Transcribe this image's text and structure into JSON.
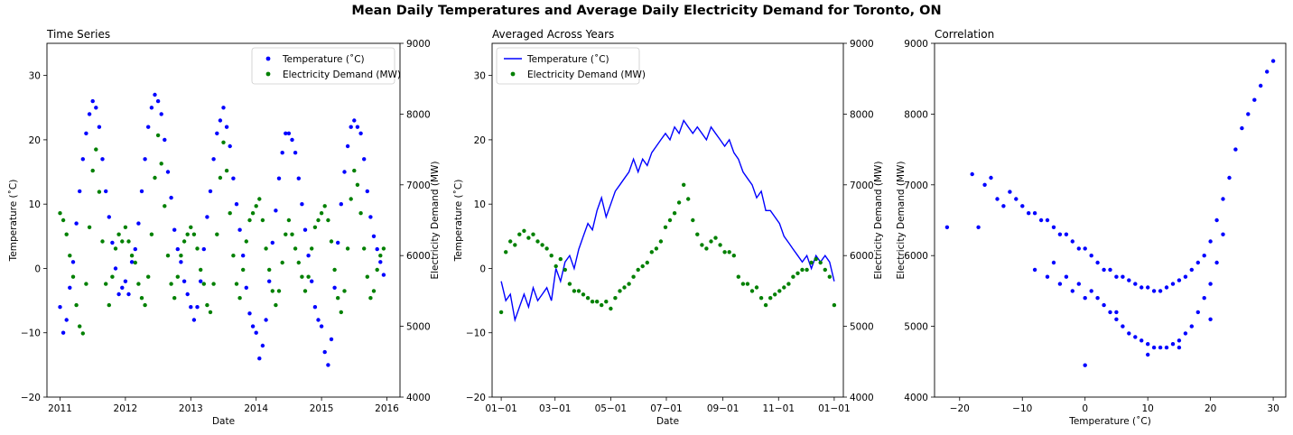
{
  "figure": {
    "suptitle": "Mean Daily Temperatures and Average Daily Electricity Demand for Toronto, ON"
  },
  "colors": {
    "temperature": "#0000ff",
    "demand": "#008000"
  },
  "chart_data": [
    {
      "id": "time-series",
      "type": "scatter",
      "title": "Time Series",
      "xlabel": "Date",
      "ylabel": "Temperature ($^\\circ$C)",
      "ylabel_display": "Temperature (˚C)",
      "ylabel_right": "Electricity Demand (MW)",
      "xlim": [
        2010.8,
        2016.2
      ],
      "ylim": [
        -20,
        35
      ],
      "ylim_right": [
        4000,
        9000
      ],
      "xticks": [
        2011,
        2012,
        2013,
        2014,
        2015,
        2016
      ],
      "xtick_labels": [
        "2011",
        "2012",
        "2013",
        "2014",
        "2015",
        "2016"
      ],
      "yticks": [
        -20,
        -10,
        0,
        10,
        20,
        30
      ],
      "yticks_right": [
        4000,
        5000,
        6000,
        7000,
        8000,
        9000
      ],
      "legend": {
        "placement": "upper-right",
        "entries": [
          "Temperature ($^\\circ$C)",
          "Electricity Demand (MW)"
        ],
        "entries_display": [
          "Temperature (˚C)",
          "Electricity Demand (MW)"
        ]
      },
      "series": [
        {
          "name": "Temperature (˚C)",
          "axis": "left",
          "marker": "point",
          "color": "#0000ff",
          "x": [
            2011.0,
            2011.05,
            2011.1,
            2011.15,
            2011.2,
            2011.25,
            2011.3,
            2011.35,
            2011.4,
            2011.45,
            2011.5,
            2011.55,
            2011.6,
            2011.65,
            2011.7,
            2011.75,
            2011.8,
            2011.85,
            2011.9,
            2011.95,
            2012.0,
            2012.05,
            2012.1,
            2012.15,
            2012.2,
            2012.25,
            2012.3,
            2012.35,
            2012.4,
            2012.45,
            2012.5,
            2012.55,
            2012.6,
            2012.65,
            2012.7,
            2012.75,
            2012.8,
            2012.85,
            2012.9,
            2012.95,
            2013.0,
            2013.05,
            2013.1,
            2013.15,
            2013.2,
            2013.25,
            2013.3,
            2013.35,
            2013.4,
            2013.45,
            2013.5,
            2013.55,
            2013.6,
            2013.65,
            2013.7,
            2013.75,
            2013.8,
            2013.85,
            2013.9,
            2013.95,
            2014.0,
            2014.05,
            2014.1,
            2014.15,
            2014.2,
            2014.25,
            2014.3,
            2014.35,
            2014.4,
            2014.45,
            2014.5,
            2014.55,
            2014.6,
            2014.65,
            2014.7,
            2014.75,
            2014.8,
            2014.85,
            2014.9,
            2014.95,
            2015.0,
            2015.05,
            2015.1,
            2015.15,
            2015.2,
            2015.25,
            2015.3,
            2015.35,
            2015.4,
            2015.45,
            2015.5,
            2015.55,
            2015.6,
            2015.65,
            2015.7,
            2015.75,
            2015.8,
            2015.85,
            2015.9,
            2015.95
          ],
          "y": [
            -6,
            -10,
            -8,
            -3,
            1,
            7,
            12,
            17,
            21,
            24,
            26,
            25,
            22,
            17,
            12,
            8,
            4,
            0,
            -4,
            -3,
            -2,
            -4,
            1,
            3,
            7,
            12,
            17,
            22,
            25,
            27,
            26,
            24,
            20,
            15,
            11,
            6,
            3,
            1,
            -2,
            -4,
            -6,
            -8,
            -6,
            -2,
            3,
            8,
            12,
            17,
            21,
            23,
            25,
            22,
            19,
            14,
            10,
            6,
            2,
            -3,
            -7,
            -9,
            -10,
            -14,
            -12,
            -8,
            -2,
            4,
            9,
            14,
            18,
            21,
            21,
            20,
            18,
            14,
            10,
            6,
            2,
            -2,
            -6,
            -8,
            -9,
            -13,
            -15,
            -11,
            -3,
            4,
            10,
            15,
            19,
            22,
            23,
            22,
            21,
            17,
            12,
            8,
            5,
            3,
            1,
            -1
          ]
        },
        {
          "name": "Electricity Demand (MW)",
          "axis": "right",
          "marker": "point",
          "color": "#008000",
          "x": [
            2011.0,
            2011.05,
            2011.1,
            2011.15,
            2011.2,
            2011.25,
            2011.3,
            2011.35,
            2011.4,
            2011.45,
            2011.5,
            2011.55,
            2011.6,
            2011.65,
            2011.7,
            2011.75,
            2011.8,
            2011.85,
            2011.9,
            2011.95,
            2012.0,
            2012.05,
            2012.1,
            2012.15,
            2012.2,
            2012.25,
            2012.3,
            2012.35,
            2012.4,
            2012.45,
            2012.5,
            2012.55,
            2012.6,
            2012.65,
            2012.7,
            2012.75,
            2012.8,
            2012.85,
            2012.9,
            2012.95,
            2013.0,
            2013.05,
            2013.1,
            2013.15,
            2013.2,
            2013.25,
            2013.3,
            2013.35,
            2013.4,
            2013.45,
            2013.5,
            2013.55,
            2013.6,
            2013.65,
            2013.7,
            2013.75,
            2013.8,
            2013.85,
            2013.9,
            2013.95,
            2014.0,
            2014.05,
            2014.1,
            2014.15,
            2014.2,
            2014.25,
            2014.3,
            2014.35,
            2014.4,
            2014.45,
            2014.5,
            2014.55,
            2014.6,
            2014.65,
            2014.7,
            2014.75,
            2014.8,
            2014.85,
            2014.9,
            2014.95,
            2015.0,
            2015.05,
            2015.1,
            2015.15,
            2015.2,
            2015.25,
            2015.3,
            2015.35,
            2015.4,
            2015.45,
            2015.5,
            2015.55,
            2015.6,
            2015.65,
            2015.7,
            2015.75,
            2015.8,
            2015.85,
            2015.9,
            2015.95
          ],
          "y": [
            6600,
            6500,
            6300,
            6000,
            5700,
            5300,
            5000,
            4900,
            5600,
            6400,
            7200,
            7500,
            6900,
            6200,
            5600,
            5300,
            5700,
            6100,
            6300,
            6200,
            6400,
            6200,
            6000,
            5900,
            5600,
            5400,
            5300,
            5700,
            6300,
            7100,
            7700,
            7300,
            6700,
            6000,
            5600,
            5400,
            5700,
            6000,
            6200,
            6300,
            6400,
            6300,
            6100,
            5800,
            5600,
            5300,
            5200,
            5600,
            6300,
            7100,
            7600,
            7200,
            6600,
            6000,
            5600,
            5400,
            5800,
            6200,
            6500,
            6600,
            6700,
            6800,
            6500,
            6100,
            5800,
            5500,
            5300,
            5500,
            5900,
            6300,
            6500,
            6300,
            6100,
            5900,
            5700,
            5500,
            5700,
            6100,
            6400,
            6500,
            6600,
            6700,
            6500,
            6200,
            5800,
            5400,
            5200,
            5500,
            6100,
            6800,
            7200,
            7000,
            6600,
            6100,
            5700,
            5400,
            5500,
            5800,
            6000,
            6100
          ]
        }
      ]
    },
    {
      "id": "averaged",
      "type": "line",
      "title": "Averaged Across Years",
      "xlabel": "Date",
      "ylabel": "Temperature ($^\\circ$C)",
      "ylabel_display": "Temperature (˚C)",
      "ylabel_right": "Electricity Demand (MW)",
      "xlim": [
        -10,
        375
      ],
      "ylim": [
        -20,
        35
      ],
      "ylim_right": [
        4000,
        9000
      ],
      "xticks": [
        0,
        59,
        120,
        181,
        243,
        304,
        365
      ],
      "xtick_labels": [
        "01-01",
        "03-01",
        "05-01",
        "07-01",
        "09-01",
        "11-01",
        "01-01"
      ],
      "yticks": [
        -20,
        -10,
        0,
        10,
        20,
        30
      ],
      "yticks_right": [
        4000,
        5000,
        6000,
        7000,
        8000,
        9000
      ],
      "legend": {
        "placement": "upper-left",
        "entries": [
          "Temperature ($^\\circ$C)",
          "Electricity Demand (MW)"
        ],
        "entries_display": [
          "Temperature (˚C)",
          "Electricity Demand (MW)"
        ]
      },
      "series": [
        {
          "name": "Temperature (˚C)",
          "axis": "left",
          "marker": "line",
          "color": "#0000ff",
          "x": [
            0,
            5,
            10,
            15,
            20,
            25,
            30,
            35,
            40,
            45,
            50,
            55,
            60,
            65,
            70,
            75,
            80,
            85,
            90,
            95,
            100,
            105,
            110,
            115,
            120,
            125,
            130,
            135,
            140,
            145,
            150,
            155,
            160,
            165,
            170,
            175,
            180,
            185,
            190,
            195,
            200,
            205,
            210,
            215,
            220,
            225,
            230,
            235,
            240,
            245,
            250,
            255,
            260,
            265,
            270,
            275,
            280,
            285,
            290,
            295,
            300,
            305,
            310,
            315,
            320,
            325,
            330,
            335,
            340,
            345,
            350,
            355,
            360,
            365
          ],
          "y": [
            -2,
            -5,
            -4,
            -8,
            -6,
            -4,
            -6,
            -3,
            -5,
            -4,
            -3,
            -5,
            0,
            -2,
            1,
            2,
            0,
            3,
            5,
            7,
            6,
            9,
            11,
            8,
            10,
            12,
            13,
            14,
            15,
            17,
            15,
            17,
            16,
            18,
            19,
            20,
            21,
            20,
            22,
            21,
            23,
            22,
            21,
            22,
            21,
            20,
            22,
            21,
            20,
            19,
            20,
            18,
            17,
            15,
            14,
            13,
            11,
            12,
            9,
            9,
            8,
            7,
            5,
            4,
            3,
            2,
            1,
            2,
            0,
            2,
            1,
            2,
            1,
            -2
          ]
        },
        {
          "name": "Electricity Demand (MW)",
          "axis": "right",
          "marker": "point",
          "color": "#008000",
          "x": [
            0,
            5,
            10,
            15,
            20,
            25,
            30,
            35,
            40,
            45,
            50,
            55,
            60,
            65,
            70,
            75,
            80,
            85,
            90,
            95,
            100,
            105,
            110,
            115,
            120,
            125,
            130,
            135,
            140,
            145,
            150,
            155,
            160,
            165,
            170,
            175,
            180,
            185,
            190,
            195,
            200,
            205,
            210,
            215,
            220,
            225,
            230,
            235,
            240,
            245,
            250,
            255,
            260,
            265,
            270,
            275,
            280,
            285,
            290,
            295,
            300,
            305,
            310,
            315,
            320,
            325,
            330,
            335,
            340,
            345,
            350,
            355,
            360,
            365
          ],
          "y": [
            5200,
            6050,
            6200,
            6150,
            6300,
            6350,
            6250,
            6300,
            6200,
            6150,
            6100,
            6000,
            5850,
            5950,
            5800,
            5600,
            5500,
            5500,
            5450,
            5400,
            5350,
            5350,
            5300,
            5350,
            5250,
            5400,
            5500,
            5550,
            5600,
            5700,
            5800,
            5850,
            5900,
            6050,
            6100,
            6200,
            6400,
            6500,
            6600,
            6750,
            7000,
            6800,
            6500,
            6300,
            6150,
            6100,
            6200,
            6250,
            6150,
            6050,
            6050,
            6000,
            5700,
            5600,
            5600,
            5500,
            5550,
            5400,
            5300,
            5400,
            5450,
            5500,
            5550,
            5600,
            5700,
            5750,
            5800,
            5800,
            5900,
            5950,
            5900,
            5800,
            5700,
            5300
          ]
        }
      ]
    },
    {
      "id": "correlation",
      "type": "scatter",
      "title": "Correlation",
      "xlabel": "Temperature ($^\\circ$C)",
      "xlabel_display": "Temperature (˚C)",
      "ylabel": "Electricity Demand (MW)",
      "xlim": [
        -24,
        32
      ],
      "ylim": [
        4000,
        9000
      ],
      "xticks": [
        -20,
        -10,
        0,
        10,
        20,
        30
      ],
      "xtick_labels": [
        "-20",
        "-10",
        "0",
        "10",
        "20",
        "30"
      ],
      "yticks": [
        4000,
        5000,
        6000,
        7000,
        8000,
        9000
      ],
      "series": [
        {
          "name": "",
          "marker": "point",
          "color": "#0000ff",
          "x": [
            -22,
            -18,
            -17,
            -16,
            -15,
            -14,
            -13,
            -12,
            -11,
            -10,
            -9,
            -8,
            -7,
            -6,
            -5,
            -4,
            -3,
            -2,
            -1,
            0,
            0,
            1,
            2,
            3,
            4,
            5,
            6,
            7,
            8,
            9,
            10,
            11,
            12,
            13,
            14,
            15,
            16,
            17,
            18,
            19,
            20,
            21,
            22,
            23,
            24,
            25,
            26,
            27,
            28,
            29,
            30,
            -5,
            -3,
            -1,
            1,
            2,
            3,
            4,
            5,
            6,
            7,
            8,
            9,
            10,
            11,
            12,
            13,
            14,
            15,
            16,
            17,
            18,
            19,
            20,
            21,
            22,
            0,
            5,
            10,
            15,
            20,
            -8,
            -6,
            -4,
            -2
          ],
          "y": [
            6400,
            7150,
            6400,
            7000,
            7100,
            6800,
            6700,
            6900,
            6800,
            6700,
            6600,
            6600,
            6500,
            6500,
            6400,
            6300,
            6300,
            6200,
            6100,
            6100,
            4450,
            6000,
            5900,
            5800,
            5800,
            5700,
            5700,
            5650,
            5600,
            5550,
            5550,
            5500,
            5500,
            5550,
            5600,
            5650,
            5700,
            5800,
            5900,
            6000,
            6200,
            6500,
            6800,
            7100,
            7500,
            7800,
            8000,
            8200,
            8400,
            8600,
            8750,
            5900,
            5700,
            5600,
            5500,
            5400,
            5300,
            5200,
            5100,
            5000,
            4900,
            4850,
            4800,
            4750,
            4700,
            4700,
            4700,
            4750,
            4800,
            4900,
            5000,
            5200,
            5400,
            5600,
            5900,
            6300,
            5400,
            5200,
            4600,
            4700,
            5100,
            5800,
            5700,
            5600,
            5500
          ]
        }
      ]
    }
  ]
}
